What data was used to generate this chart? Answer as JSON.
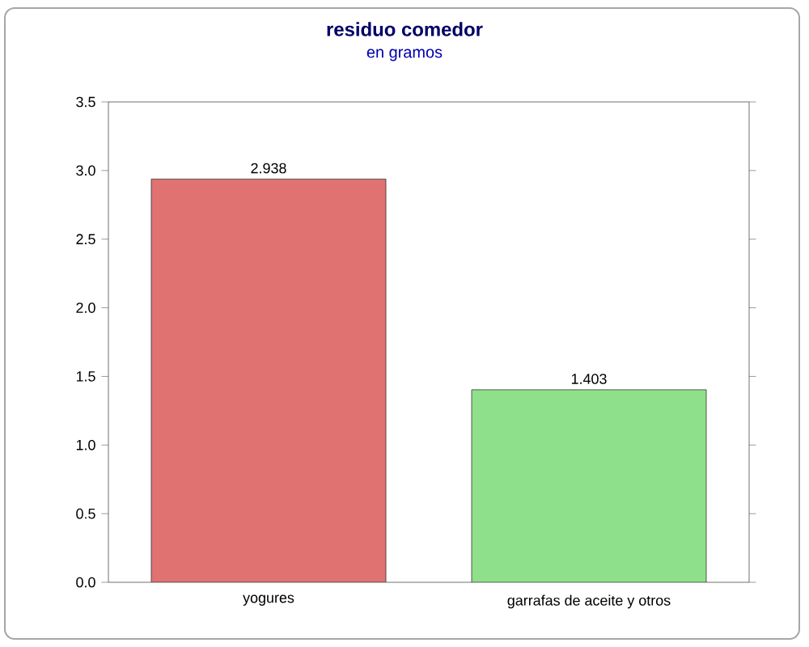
{
  "chart_data": {
    "type": "bar",
    "title": "residuo comedor",
    "subtitle": "en gramos",
    "categories": [
      "yogures",
      "garrafas de aceite y otros"
    ],
    "values": [
      2.938,
      1.403
    ],
    "colors": [
      "#e07272",
      "#8fe08a"
    ],
    "data_labels": true,
    "ylim": [
      0,
      3.5
    ],
    "yticks": [
      {
        "value": 0,
        "label": "0.0"
      },
      {
        "value": 0.5,
        "label": "0.5"
      },
      {
        "value": 1,
        "label": "1.0"
      },
      {
        "value": 1.5,
        "label": "1.5"
      },
      {
        "value": 2,
        "label": "2.0"
      },
      {
        "value": 2.5,
        "label": "2.5"
      },
      {
        "value": 3,
        "label": "3.0"
      },
      {
        "value": 3.5,
        "label": "3.5"
      }
    ]
  }
}
